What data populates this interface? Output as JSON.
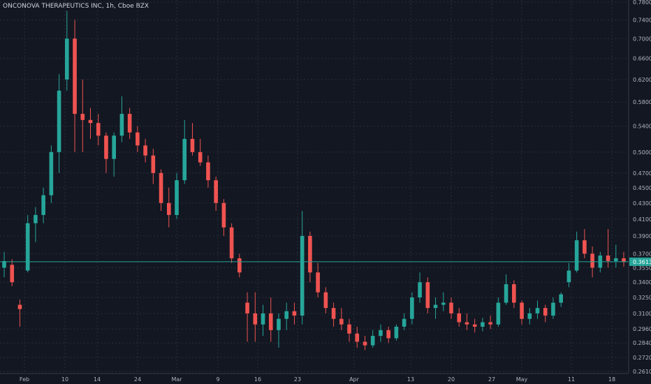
{
  "header": {
    "title": "ONCONOVA THERAPEUTICS INC, 1h, Cboe BZX"
  },
  "colors": {
    "background": "#131722",
    "grid": "#2a2e39",
    "up": "#26a69a",
    "down": "#ef5350",
    "price_line": "#26a69a",
    "axis_text": "#b2b5be"
  },
  "chart_data": {
    "type": "candlestick",
    "title": "ONCONOVA THERAPEUTICS INC, 1h, Cboe BZX",
    "xlabel": "",
    "ylabel": "",
    "scale": "log",
    "ylim": [
      0.261,
      0.78
    ],
    "grid": true,
    "y_ticks": [
      "0.7800",
      "0.7400",
      "0.7000",
      "0.6600",
      "0.6200",
      "0.5800",
      "0.5400",
      "0.5000",
      "0.4700",
      "0.4500",
      "0.4300",
      "0.4100",
      "0.3900",
      "0.3700",
      "0.3550",
      "0.3400",
      "0.3250",
      "0.3100",
      "0.2960",
      "0.2840",
      "0.2720",
      "0.2610"
    ],
    "x_ticks": [
      "Feb",
      "10",
      "14",
      "24",
      "Mar",
      "9",
      "16",
      "23",
      "Apr",
      "13",
      "20",
      "27",
      "May",
      "11",
      "18"
    ],
    "current_price": "0.3613",
    "series": [
      {
        "values": [
          {
            "x": "Jan 29",
            "o": 0.355,
            "h": 0.372,
            "l": 0.345,
            "c": 0.362
          },
          {
            "x": "Jan 31",
            "o": 0.358,
            "h": 0.364,
            "l": 0.336,
            "c": 0.34
          },
          {
            "x": "Feb 3",
            "o": 0.318,
            "h": 0.323,
            "l": 0.298,
            "c": 0.314
          },
          {
            "x": "Feb 4",
            "o": 0.352,
            "h": 0.415,
            "l": 0.35,
            "c": 0.405
          },
          {
            "x": "Feb 5",
            "o": 0.405,
            "h": 0.425,
            "l": 0.383,
            "c": 0.415
          },
          {
            "x": "Feb 6",
            "o": 0.415,
            "h": 0.45,
            "l": 0.405,
            "c": 0.44
          },
          {
            "x": "Feb 7",
            "o": 0.44,
            "h": 0.51,
            "l": 0.43,
            "c": 0.5
          },
          {
            "x": "Feb 10",
            "o": 0.5,
            "h": 0.63,
            "l": 0.47,
            "c": 0.6
          },
          {
            "x": "Feb 11",
            "o": 0.62,
            "h": 0.76,
            "l": 0.6,
            "c": 0.7
          },
          {
            "x": "Feb 11b",
            "o": 0.7,
            "h": 0.74,
            "l": 0.5,
            "c": 0.56
          },
          {
            "x": "Feb 12",
            "o": 0.56,
            "h": 0.62,
            "l": 0.5,
            "c": 0.55
          },
          {
            "x": "Feb 13",
            "o": 0.55,
            "h": 0.57,
            "l": 0.52,
            "c": 0.545
          },
          {
            "x": "Feb 14",
            "o": 0.545,
            "h": 0.56,
            "l": 0.51,
            "c": 0.525
          },
          {
            "x": "Feb 18",
            "o": 0.525,
            "h": 0.53,
            "l": 0.47,
            "c": 0.49
          },
          {
            "x": "Feb 19",
            "o": 0.49,
            "h": 0.53,
            "l": 0.465,
            "c": 0.525
          },
          {
            "x": "Feb 20",
            "o": 0.525,
            "h": 0.59,
            "l": 0.515,
            "c": 0.56
          },
          {
            "x": "Feb 21",
            "o": 0.56,
            "h": 0.57,
            "l": 0.52,
            "c": 0.53
          },
          {
            "x": "Feb 24",
            "o": 0.53,
            "h": 0.54,
            "l": 0.5,
            "c": 0.51
          },
          {
            "x": "Feb 25",
            "o": 0.51,
            "h": 0.52,
            "l": 0.485,
            "c": 0.495
          },
          {
            "x": "Feb 26",
            "o": 0.495,
            "h": 0.505,
            "l": 0.455,
            "c": 0.47
          },
          {
            "x": "Feb 27",
            "o": 0.47,
            "h": 0.475,
            "l": 0.42,
            "c": 0.43
          },
          {
            "x": "Feb 28",
            "o": 0.43,
            "h": 0.45,
            "l": 0.4,
            "c": 0.415
          },
          {
            "x": "Mar 2",
            "o": 0.415,
            "h": 0.47,
            "l": 0.41,
            "c": 0.46
          },
          {
            "x": "Mar 3",
            "o": 0.46,
            "h": 0.55,
            "l": 0.455,
            "c": 0.52
          },
          {
            "x": "Mar 4",
            "o": 0.52,
            "h": 0.545,
            "l": 0.495,
            "c": 0.5
          },
          {
            "x": "Mar 5",
            "o": 0.5,
            "h": 0.52,
            "l": 0.48,
            "c": 0.485
          },
          {
            "x": "Mar 6",
            "o": 0.485,
            "h": 0.495,
            "l": 0.45,
            "c": 0.46
          },
          {
            "x": "Mar 9",
            "o": 0.46,
            "h": 0.465,
            "l": 0.42,
            "c": 0.43
          },
          {
            "x": "Mar 10",
            "o": 0.43,
            "h": 0.435,
            "l": 0.39,
            "c": 0.4
          },
          {
            "x": "Mar 11",
            "o": 0.4,
            "h": 0.405,
            "l": 0.36,
            "c": 0.365
          },
          {
            "x": "Mar 12",
            "o": 0.365,
            "h": 0.37,
            "l": 0.345,
            "c": 0.35
          },
          {
            "x": "Mar 13",
            "o": 0.32,
            "h": 0.33,
            "l": 0.285,
            "c": 0.31
          },
          {
            "x": "Mar 16",
            "o": 0.31,
            "h": 0.33,
            "l": 0.285,
            "c": 0.3
          },
          {
            "x": "Mar 17",
            "o": 0.3,
            "h": 0.318,
            "l": 0.29,
            "c": 0.31
          },
          {
            "x": "Mar 18",
            "o": 0.31,
            "h": 0.325,
            "l": 0.285,
            "c": 0.295
          },
          {
            "x": "Mar 19",
            "o": 0.295,
            "h": 0.31,
            "l": 0.28,
            "c": 0.305
          },
          {
            "x": "Mar 20",
            "o": 0.305,
            "h": 0.32,
            "l": 0.295,
            "c": 0.312
          },
          {
            "x": "Mar 23",
            "o": 0.312,
            "h": 0.32,
            "l": 0.3,
            "c": 0.308
          },
          {
            "x": "Mar 24",
            "o": 0.308,
            "h": 0.42,
            "l": 0.3,
            "c": 0.39
          },
          {
            "x": "Mar 25",
            "o": 0.39,
            "h": 0.395,
            "l": 0.34,
            "c": 0.35
          },
          {
            "x": "Mar 26",
            "o": 0.35,
            "h": 0.36,
            "l": 0.325,
            "c": 0.33
          },
          {
            "x": "Mar 27",
            "o": 0.33,
            "h": 0.335,
            "l": 0.31,
            "c": 0.315
          },
          {
            "x": "Mar 30",
            "o": 0.315,
            "h": 0.32,
            "l": 0.298,
            "c": 0.305
          },
          {
            "x": "Mar 31",
            "o": 0.305,
            "h": 0.315,
            "l": 0.295,
            "c": 0.3
          },
          {
            "x": "Apr 1",
            "o": 0.3,
            "h": 0.305,
            "l": 0.285,
            "c": 0.292
          },
          {
            "x": "Apr 2",
            "o": 0.292,
            "h": 0.298,
            "l": 0.28,
            "c": 0.285
          },
          {
            "x": "Apr 3",
            "o": 0.285,
            "h": 0.29,
            "l": 0.278,
            "c": 0.282
          },
          {
            "x": "Apr 6",
            "o": 0.282,
            "h": 0.295,
            "l": 0.28,
            "c": 0.29
          },
          {
            "x": "Apr 7",
            "o": 0.29,
            "h": 0.3,
            "l": 0.285,
            "c": 0.295
          },
          {
            "x": "Apr 8",
            "o": 0.295,
            "h": 0.298,
            "l": 0.284,
            "c": 0.288
          },
          {
            "x": "Apr 9",
            "o": 0.288,
            "h": 0.3,
            "l": 0.286,
            "c": 0.298
          },
          {
            "x": "Apr 10",
            "o": 0.298,
            "h": 0.31,
            "l": 0.295,
            "c": 0.305
          },
          {
            "x": "Apr 13",
            "o": 0.305,
            "h": 0.33,
            "l": 0.3,
            "c": 0.325
          },
          {
            "x": "Apr 14",
            "o": 0.325,
            "h": 0.35,
            "l": 0.32,
            "c": 0.34
          },
          {
            "x": "Apr 15",
            "o": 0.34,
            "h": 0.345,
            "l": 0.31,
            "c": 0.315
          },
          {
            "x": "Apr 16",
            "o": 0.315,
            "h": 0.325,
            "l": 0.305,
            "c": 0.318
          },
          {
            "x": "Apr 17",
            "o": 0.318,
            "h": 0.33,
            "l": 0.312,
            "c": 0.32
          },
          {
            "x": "Apr 20",
            "o": 0.32,
            "h": 0.325,
            "l": 0.305,
            "c": 0.31
          },
          {
            "x": "Apr 21",
            "o": 0.31,
            "h": 0.315,
            "l": 0.298,
            "c": 0.302
          },
          {
            "x": "Apr 22",
            "o": 0.302,
            "h": 0.31,
            "l": 0.295,
            "c": 0.3
          },
          {
            "x": "Apr 23",
            "o": 0.3,
            "h": 0.305,
            "l": 0.293,
            "c": 0.298
          },
          {
            "x": "Apr 24",
            "o": 0.298,
            "h": 0.306,
            "l": 0.294,
            "c": 0.302
          },
          {
            "x": "Apr 27",
            "o": 0.302,
            "h": 0.308,
            "l": 0.296,
            "c": 0.3
          },
          {
            "x": "Apr 28",
            "o": 0.3,
            "h": 0.325,
            "l": 0.298,
            "c": 0.32
          },
          {
            "x": "Apr 29",
            "o": 0.32,
            "h": 0.348,
            "l": 0.318,
            "c": 0.338
          },
          {
            "x": "Apr 30",
            "o": 0.338,
            "h": 0.342,
            "l": 0.315,
            "c": 0.32
          },
          {
            "x": "May 1",
            "o": 0.32,
            "h": 0.322,
            "l": 0.3,
            "c": 0.305
          },
          {
            "x": "May 4",
            "o": 0.305,
            "h": 0.315,
            "l": 0.3,
            "c": 0.31
          },
          {
            "x": "May 5",
            "o": 0.31,
            "h": 0.322,
            "l": 0.305,
            "c": 0.315
          },
          {
            "x": "May 6",
            "o": 0.315,
            "h": 0.318,
            "l": 0.302,
            "c": 0.308
          },
          {
            "x": "May 7",
            "o": 0.308,
            "h": 0.325,
            "l": 0.305,
            "c": 0.32
          },
          {
            "x": "May 8",
            "o": 0.32,
            "h": 0.33,
            "l": 0.316,
            "c": 0.328
          },
          {
            "x": "May 11",
            "o": 0.34,
            "h": 0.36,
            "l": 0.335,
            "c": 0.352
          },
          {
            "x": "May 12",
            "o": 0.352,
            "h": 0.395,
            "l": 0.35,
            "c": 0.385
          },
          {
            "x": "May 13",
            "o": 0.385,
            "h": 0.398,
            "l": 0.365,
            "c": 0.37
          },
          {
            "x": "May 14",
            "o": 0.37,
            "h": 0.378,
            "l": 0.345,
            "c": 0.355
          },
          {
            "x": "May 15",
            "o": 0.355,
            "h": 0.372,
            "l": 0.35,
            "c": 0.368
          },
          {
            "x": "May 18",
            "o": 0.368,
            "h": 0.398,
            "l": 0.355,
            "c": 0.362
          },
          {
            "x": "May 19",
            "o": 0.362,
            "h": 0.38,
            "l": 0.355,
            "c": 0.365
          },
          {
            "x": "May 20",
            "o": 0.365,
            "h": 0.372,
            "l": 0.356,
            "c": 0.361
          }
        ]
      }
    ]
  }
}
